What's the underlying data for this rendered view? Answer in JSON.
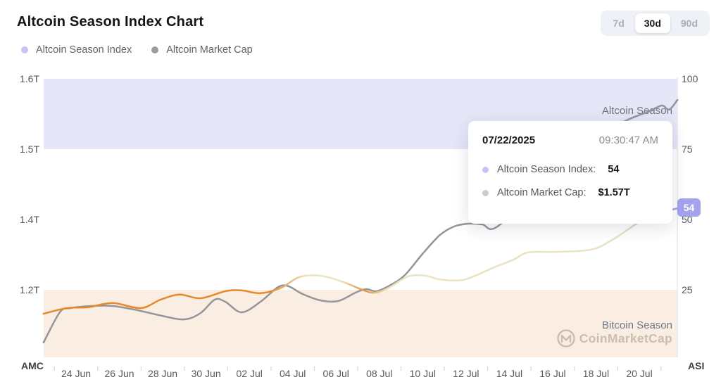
{
  "header": {
    "title": "Altcoin Season Index Chart"
  },
  "range_buttons": [
    {
      "label": "7d",
      "active": false
    },
    {
      "label": "30d",
      "active": true
    },
    {
      "label": "90d",
      "active": false
    }
  ],
  "legend": [
    {
      "label": "Altcoin Season Index",
      "color": "#c6c4f2"
    },
    {
      "label": "Altcoin Market Cap",
      "color": "#9a9ca1"
    }
  ],
  "tooltip": {
    "date": "07/22/2025",
    "time": "09:30:47 AM",
    "rows": [
      {
        "label": "Altcoin Season Index:",
        "value": "54",
        "dot_color": "#c6c4f2"
      },
      {
        "label": "Altcoin Market Cap:",
        "value": "$1.57T",
        "dot_color": "#c9ccd2"
      }
    ]
  },
  "badge": {
    "value": "54",
    "color": "#a5a3ed"
  },
  "watermark": {
    "brand": "CoinMarketCap"
  },
  "chart_data": {
    "type": "line",
    "title": "Altcoin Season Index Chart",
    "x_unit": "days since 24 Jun",
    "x_ticks": [
      {
        "label": "24 Jun",
        "d": 0
      },
      {
        "label": "26 Jun",
        "d": 2
      },
      {
        "label": "28 Jun",
        "d": 4
      },
      {
        "label": "30 Jun",
        "d": 6
      },
      {
        "label": "02 Jul",
        "d": 8
      },
      {
        "label": "04 Jul",
        "d": 10
      },
      {
        "label": "06 Jul",
        "d": 12
      },
      {
        "label": "08 Jul",
        "d": 14
      },
      {
        "label": "10 Jul",
        "d": 16
      },
      {
        "label": "12 Jul",
        "d": 18
      },
      {
        "label": "14 Jul",
        "d": 20
      },
      {
        "label": "16 Jul",
        "d": 22
      },
      {
        "label": "18 Jul",
        "d": 24
      },
      {
        "label": "20 Jul",
        "d": 26
      }
    ],
    "left_axis": {
      "name": "AMC",
      "ticks": [
        {
          "label": "1.6T",
          "value": 1.6
        },
        {
          "label": "1.5T",
          "value": 1.5
        },
        {
          "label": "1.4T",
          "value": 1.4
        },
        {
          "label": "1.2T",
          "value": 1.2
        }
      ],
      "anchors": [
        [
          1.2,
          412
        ],
        [
          1.4,
          312
        ],
        [
          1.5,
          212
        ],
        [
          1.6,
          112
        ]
      ]
    },
    "right_axis": {
      "name": "ASI",
      "ticks": [
        {
          "label": "100",
          "value": 100
        },
        {
          "label": "75",
          "value": 75
        },
        {
          "label": "50",
          "value": 50
        },
        {
          "label": "25",
          "value": 25
        }
      ],
      "anchors": [
        [
          0,
          512
        ],
        [
          100,
          112
        ]
      ]
    },
    "zones": [
      {
        "label": "Altcoin Season",
        "range": [
          75,
          100
        ],
        "color": "#e6e6f8"
      },
      {
        "label": "Bitcoin Season",
        "range": [
          0,
          25
        ],
        "color": "#faeee3"
      }
    ],
    "series": [
      {
        "name": "Altcoin Market Cap",
        "axis": "left",
        "color": "#94959a",
        "points": [
          [
            -1.5,
            1.05
          ],
          [
            -0.75,
            1.136
          ],
          [
            -0.26,
            1.148
          ],
          [
            0.71,
            1.154
          ],
          [
            1.69,
            1.154
          ],
          [
            2.83,
            1.142
          ],
          [
            3.97,
            1.126
          ],
          [
            5.0,
            1.116
          ],
          [
            5.75,
            1.134
          ],
          [
            6.4,
            1.172
          ],
          [
            6.89,
            1.166
          ],
          [
            7.64,
            1.136
          ],
          [
            8.51,
            1.166
          ],
          [
            9.33,
            1.208
          ],
          [
            9.81,
            1.21
          ],
          [
            10.46,
            1.188
          ],
          [
            11.28,
            1.17
          ],
          [
            12.09,
            1.168
          ],
          [
            12.9,
            1.192
          ],
          [
            13.39,
            1.202
          ],
          [
            13.88,
            1.196
          ],
          [
            14.53,
            1.214
          ],
          [
            15.18,
            1.242
          ],
          [
            15.99,
            1.302
          ],
          [
            16.8,
            1.356
          ],
          [
            17.45,
            1.38
          ],
          [
            18.1,
            1.388
          ],
          [
            18.75,
            1.386
          ],
          [
            19.4,
            1.378
          ],
          [
            21.19,
            1.44
          ],
          [
            23.14,
            1.497
          ],
          [
            25.09,
            1.536
          ],
          [
            26.39,
            1.553
          ],
          [
            27.04,
            1.562
          ],
          [
            27.37,
            1.556
          ],
          [
            27.76,
            1.57
          ]
        ]
      },
      {
        "name": "Altcoin Season Index",
        "axis": "right",
        "gradient_stops": [
          {
            "o": 0,
            "c": "#e8872c"
          },
          {
            "o": 0.355,
            "c": "#e8872c"
          },
          {
            "o": 0.415,
            "c": "#ebe4c1"
          },
          {
            "o": 0.468,
            "c": "#ebe4c1"
          },
          {
            "o": 0.505,
            "c": "#e2933f"
          },
          {
            "o": 0.545,
            "c": "#ebe4c1"
          },
          {
            "o": 0.915,
            "c": "#e9e2c2"
          },
          {
            "o": 0.962,
            "c": "#b4b2ee"
          },
          {
            "o": 1,
            "c": "#a3a1ea"
          }
        ],
        "points": [
          [
            -1.5,
            16.5
          ],
          [
            -0.42,
            18.5
          ],
          [
            0.55,
            18.8
          ],
          [
            1.69,
            20.3
          ],
          [
            2.99,
            18.5
          ],
          [
            3.9,
            21.5
          ],
          [
            4.78,
            23.3
          ],
          [
            5.75,
            22
          ],
          [
            6.89,
            24.5
          ],
          [
            7.64,
            24.8
          ],
          [
            8.52,
            23.8
          ],
          [
            9.49,
            25.8
          ],
          [
            10.3,
            29.5
          ],
          [
            11.28,
            30
          ],
          [
            12.32,
            27.8
          ],
          [
            13.29,
            24.8
          ],
          [
            13.81,
            24
          ],
          [
            14.46,
            25.8
          ],
          [
            15.34,
            29.8
          ],
          [
            16.15,
            30
          ],
          [
            16.7,
            28.8
          ],
          [
            17.45,
            28.3
          ],
          [
            18.1,
            29
          ],
          [
            19.24,
            32.8
          ],
          [
            20.21,
            35.8
          ],
          [
            20.86,
            38.3
          ],
          [
            22.16,
            38.5
          ],
          [
            23.79,
            39.3
          ],
          [
            24.76,
            42.8
          ],
          [
            25.64,
            47.3
          ],
          [
            26.55,
            51.5
          ],
          [
            27.79,
            54
          ]
        ]
      }
    ],
    "legend_position": "top-left",
    "grid": "off"
  }
}
